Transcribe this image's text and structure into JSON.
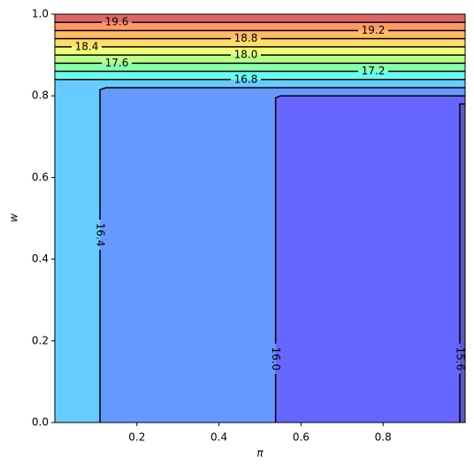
{
  "chart_data": {
    "type": "contour",
    "x_label": "π",
    "y_label": "w",
    "xlim": [
      0.0,
      1.0
    ],
    "ylim": [
      0.0,
      1.0
    ],
    "xticks": [
      0.2,
      0.4,
      0.6,
      0.8
    ],
    "yticks": [
      {
        "value": 0.0,
        "label": "0.0"
      },
      0.2,
      0.4,
      0.6,
      0.8,
      {
        "value": 1.0,
        "label": "1.0"
      }
    ],
    "below_color": "#5b5bc8",
    "line_color": "#000000",
    "contours": [
      {
        "level": 15.6,
        "label": "15.6",
        "color": "#6666ff",
        "x": [
          0.987,
          0.987,
          1.0
        ],
        "y": [
          0.0,
          0.78,
          0.78
        ]
      },
      {
        "level": 16.0,
        "label": "16.0",
        "color": "#6699ff",
        "x": [
          0.538,
          0.538,
          0.55,
          1.0
        ],
        "y": [
          0.0,
          0.795,
          0.8,
          0.8
        ]
      },
      {
        "level": 16.4,
        "label": "16.4",
        "color": "#66ccff",
        "x": [
          0.11,
          0.11,
          0.125,
          1.0
        ],
        "y": [
          0.0,
          0.815,
          0.82,
          0.82
        ]
      },
      {
        "level": 16.8,
        "label": "16.8",
        "color": "#66ffee",
        "x": [
          0.0,
          1.0
        ],
        "y": [
          0.84,
          0.84
        ]
      },
      {
        "level": 17.2,
        "label": "17.2",
        "color": "#88ffaa",
        "x": [
          0.0,
          1.0
        ],
        "y": [
          0.86,
          0.86
        ]
      },
      {
        "level": 17.6,
        "label": "17.6",
        "color": "#bbff88",
        "x": [
          0.0,
          1.0
        ],
        "y": [
          0.88,
          0.88
        ]
      },
      {
        "level": 18.0,
        "label": "18.0",
        "color": "#eeff77",
        "x": [
          0.0,
          1.0
        ],
        "y": [
          0.9,
          0.9
        ]
      },
      {
        "level": 18.4,
        "label": "18.4",
        "color": "#ffdd66",
        "x": [
          0.0,
          1.0
        ],
        "y": [
          0.92,
          0.92
        ]
      },
      {
        "level": 18.8,
        "label": "18.8",
        "color": "#ffbb66",
        "x": [
          0.0,
          1.0
        ],
        "y": [
          0.94,
          0.94
        ]
      },
      {
        "level": 19.2,
        "label": "19.2",
        "color": "#ff9966",
        "x": [
          0.0,
          1.0
        ],
        "y": [
          0.96,
          0.96
        ]
      },
      {
        "level": 19.6,
        "label": "19.6",
        "color": "#dd6666",
        "x": [
          0.0,
          1.0
        ],
        "y": [
          0.98,
          0.98
        ]
      }
    ]
  }
}
